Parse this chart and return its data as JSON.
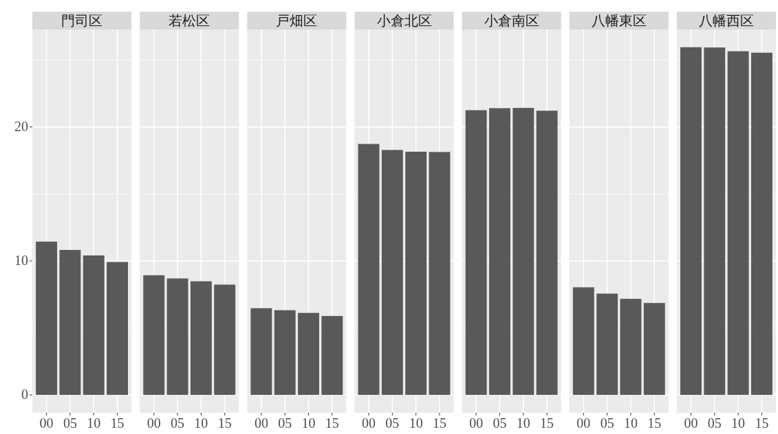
{
  "chart_data": [
    {
      "type": "bar",
      "title": "門司区",
      "categories": [
        "00",
        "05",
        "10",
        "15"
      ],
      "values": [
        11.44,
        10.82,
        10.41,
        9.92
      ],
      "color": "#595959",
      "ylim": [
        -1.33,
        27.27
      ],
      "yticks": [
        0,
        10,
        20
      ],
      "grid": true
    },
    {
      "type": "bar",
      "title": "若松区",
      "categories": [
        "00",
        "05",
        "10",
        "15"
      ],
      "values": [
        8.93,
        8.69,
        8.48,
        8.23
      ],
      "color": "#595959",
      "ylim": [
        -1.33,
        27.27
      ],
      "yticks": [
        0,
        10,
        20
      ],
      "grid": true,
      "tick_labels": "x"
    },
    {
      "type": "bar",
      "title": "戸畑区",
      "categories": [
        "00",
        "05",
        "10",
        "15"
      ],
      "values": [
        6.47,
        6.32,
        6.12,
        5.89
      ],
      "color": "#595959",
      "ylim": [
        -1.33,
        27.27
      ],
      "yticks": [
        0,
        10,
        20
      ],
      "grid": true,
      "tick_labels": "x"
    },
    {
      "type": "bar",
      "title": "小倉北区",
      "categories": [
        "00",
        "05",
        "10",
        "15"
      ],
      "values": [
        18.73,
        18.28,
        18.15,
        18.13
      ],
      "color": "#595959",
      "ylim": [
        -1.33,
        27.27
      ],
      "yticks": [
        0,
        10,
        20
      ],
      "grid": true,
      "tick_labels": "x"
    },
    {
      "type": "bar",
      "title": "小倉南区",
      "categories": [
        "00",
        "05",
        "10",
        "15"
      ],
      "values": [
        21.25,
        21.4,
        21.42,
        21.21
      ],
      "color": "#595959",
      "ylim": [
        -1.33,
        27.27
      ],
      "yticks": [
        0,
        10,
        20
      ],
      "grid": true,
      "tick_labels": "x"
    },
    {
      "type": "bar",
      "title": "八幡東区",
      "categories": [
        "00",
        "05",
        "10",
        "15"
      ],
      "values": [
        8.03,
        7.56,
        7.17,
        6.86
      ],
      "color": "#595959",
      "ylim": [
        -1.33,
        27.27
      ],
      "yticks": [
        0,
        10,
        20
      ],
      "grid": true,
      "tick_labels": "x"
    },
    {
      "type": "bar",
      "title": "八幡西区",
      "categories": [
        "00",
        "05",
        "10",
        "15"
      ],
      "values": [
        25.95,
        25.93,
        25.65,
        25.54
      ],
      "color": "#595959",
      "ylim": [
        -1.33,
        27.27
      ],
      "yticks": [
        0,
        10,
        20
      ],
      "grid": true,
      "tick_labels": "x"
    }
  ]
}
